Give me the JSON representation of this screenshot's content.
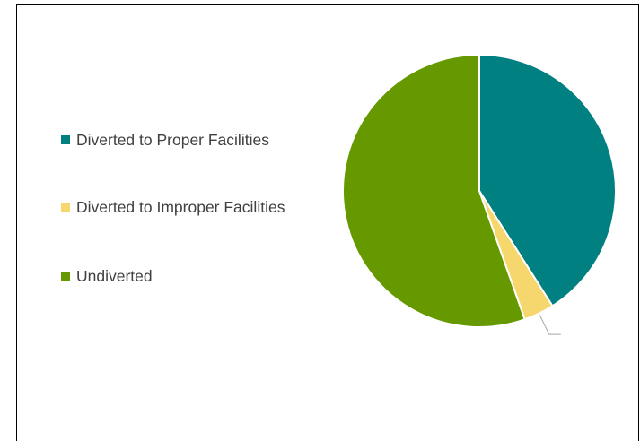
{
  "chart_data": {
    "type": "pie",
    "categories": [
      "Diverted to Proper Facilities",
      "Diverted to Improper Facilities",
      "Undiverted"
    ],
    "values": [
      41,
      3.6,
      55.4
    ],
    "colors": [
      "#008080",
      "#f5d76e",
      "#669900"
    ],
    "legend": "left"
  }
}
